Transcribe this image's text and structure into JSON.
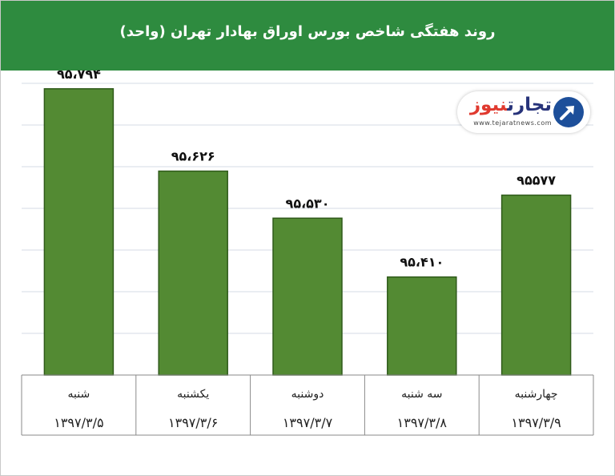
{
  "header": {
    "title": "روند هفتگی شاخص بورس اوراق بهادار تهران (واحد)"
  },
  "logo": {
    "name_main": "تجارت",
    "name_accent": "نیوز",
    "url": "www.tejaratnews.com"
  },
  "colors": {
    "header": "#2e8b3f",
    "bar": "#538a33",
    "bar_outline": "#2f5a1a",
    "grid": "#d4dbe4"
  },
  "chart_data": {
    "type": "bar",
    "title": "روند هفتگی شاخص بورس اوراق بهادار تهران (واحد)",
    "xlabel": "",
    "ylabel": "",
    "categories": [
      {
        "day": "شنبه",
        "date": "۱۳۹۷/۳/۵"
      },
      {
        "day": "یکشنبه",
        "date": "۱۳۹۷/۳/۶"
      },
      {
        "day": "دوشنبه",
        "date": "۱۳۹۷/۳/۷"
      },
      {
        "day": "سه شنبه",
        "date": "۱۳۹۷/۳/۸"
      },
      {
        "day": "چهارشنبه",
        "date": "۱۳۹۷/۳/۹"
      }
    ],
    "values": [
      95794,
      95626,
      95530,
      95410,
      95577
    ],
    "value_labels": [
      "۹۵،۷۹۴",
      "۹۵،۶۲۶",
      "۹۵،۵۳۰",
      "۹۵،۴۱۰",
      "۹۵۵۷۷"
    ],
    "ylim": [
      95210,
      95810
    ],
    "grid": true,
    "legend": "none"
  }
}
